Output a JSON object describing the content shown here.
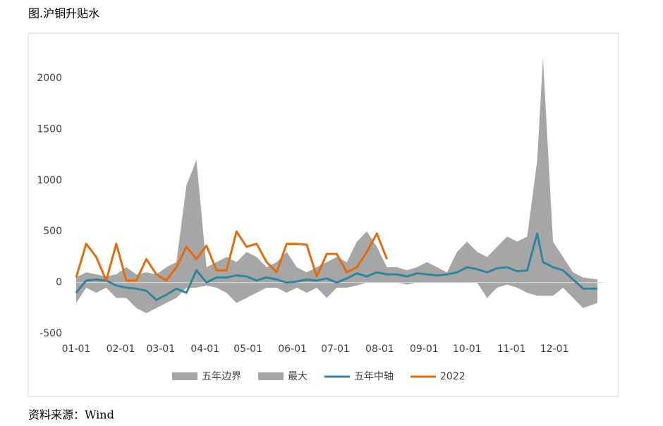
{
  "chart_data": {
    "type": "line",
    "title": "图.沪铜升贴水",
    "source": "资料来源：Wind",
    "x": [
      0,
      7,
      14,
      21,
      28,
      35,
      42,
      49,
      56,
      63,
      70,
      77,
      84,
      91,
      98,
      105,
      112,
      119,
      126,
      133,
      140,
      147,
      154,
      161,
      168,
      175,
      182,
      189,
      196,
      203,
      210,
      217,
      224,
      231,
      238,
      245,
      252,
      259,
      266,
      273,
      280,
      287,
      294,
      301,
      308,
      315,
      322,
      326,
      333,
      340,
      347,
      354,
      364
    ],
    "xlim": [
      0,
      365
    ],
    "xticks": [
      {
        "value": 0,
        "label": "01-01"
      },
      {
        "value": 31,
        "label": "02-01"
      },
      {
        "value": 59,
        "label": "03-01"
      },
      {
        "value": 90,
        "label": "04-01"
      },
      {
        "value": 120,
        "label": "05-01"
      },
      {
        "value": 151,
        "label": "06-01"
      },
      {
        "value": 181,
        "label": "07-01"
      },
      {
        "value": 212,
        "label": "08-01"
      },
      {
        "value": 243,
        "label": "09-01"
      },
      {
        "value": 273,
        "label": "10-01"
      },
      {
        "value": 304,
        "label": "11-01"
      },
      {
        "value": 334,
        "label": "12-01"
      }
    ],
    "ylim": [
      -500,
      2200
    ],
    "yticks": [
      -500,
      0,
      500,
      1000,
      1500,
      2000
    ],
    "series": [
      {
        "name": "五年边界",
        "color": "#a6a6a6",
        "style": "area",
        "values": [
          -200,
          -50,
          -100,
          -50,
          -150,
          -150,
          -250,
          -300,
          -250,
          -200,
          -150,
          -50,
          -50,
          -30,
          -50,
          -100,
          -200,
          -150,
          -100,
          -50,
          -50,
          -100,
          -50,
          -100,
          -50,
          -150,
          -50,
          -50,
          -30,
          0,
          20,
          0,
          0,
          -20,
          0,
          0,
          0,
          0,
          0,
          0,
          0,
          -150,
          -50,
          -20,
          -50,
          -100,
          -130,
          -130,
          -130,
          -50,
          -150,
          -250,
          -200
        ]
      },
      {
        "name": "最大",
        "color": "#a6a6a6",
        "style": "area",
        "values": [
          50,
          100,
          80,
          60,
          80,
          150,
          80,
          100,
          80,
          150,
          200,
          950,
          1200,
          150,
          200,
          250,
          200,
          300,
          250,
          150,
          200,
          300,
          150,
          100,
          150,
          200,
          250,
          200,
          400,
          500,
          350,
          150,
          150,
          120,
          150,
          200,
          150,
          100,
          300,
          400,
          300,
          250,
          350,
          450,
          400,
          450,
          1200,
          2200,
          400,
          250,
          100,
          50,
          30
        ]
      },
      {
        "name": "五年中轴",
        "color": "#31859c",
        "style": "line",
        "values": [
          -100,
          20,
          30,
          20,
          -30,
          -50,
          -60,
          -80,
          -170,
          -120,
          -60,
          -100,
          120,
          0,
          50,
          50,
          70,
          60,
          20,
          50,
          30,
          0,
          10,
          30,
          20,
          40,
          0,
          40,
          90,
          60,
          100,
          80,
          80,
          60,
          90,
          80,
          70,
          80,
          100,
          150,
          130,
          100,
          140,
          150,
          110,
          120,
          480,
          200,
          150,
          120,
          30,
          -60,
          -60
        ]
      },
      {
        "name": "2022",
        "color": "#e46c0a",
        "style": "line",
        "values": [
          50,
          380,
          250,
          20,
          380,
          20,
          20,
          230,
          80,
          20,
          150,
          350,
          230,
          360,
          120,
          120,
          500,
          350,
          380,
          200,
          100,
          380,
          380,
          370,
          60,
          280,
          280,
          100,
          150,
          300,
          480,
          230,
          null,
          null,
          null,
          null,
          null,
          null,
          null,
          null,
          null,
          null,
          null,
          null,
          null,
          null,
          null,
          null,
          null,
          null,
          null,
          null,
          null
        ]
      }
    ]
  }
}
